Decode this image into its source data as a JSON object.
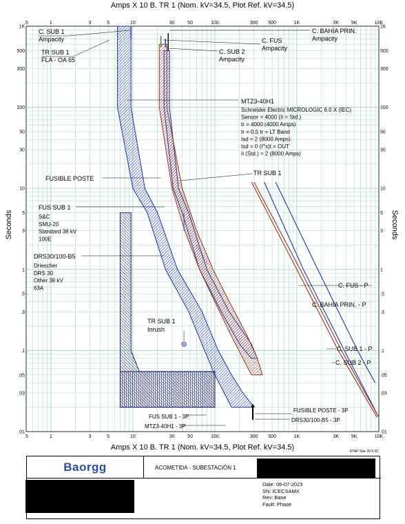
{
  "header": {
    "top_axis_title": "Amps  X  10   B. TR 1 (Nom. kV=34.5, Plot Ref. kV=34.5)",
    "bottom_axis_title": "Amps  X  10   B. TR 1 (Nom. kV=34.5, Plot Ref. kV=34.5)",
    "left_axis_title": "Seconds",
    "right_axis_title": "Seconds"
  },
  "chart_data": {
    "type": "line",
    "x_scale": "log",
    "y_scale": "log",
    "xlim": [
      0.5,
      10000
    ],
    "ylim": [
      0.01,
      1000
    ],
    "x_ticks": [
      ".5",
      "1",
      "3",
      "5",
      "10",
      "30",
      "50",
      "100",
      "300",
      "500",
      "1K",
      "3K",
      "5K",
      "10K"
    ],
    "x_tick_values": [
      0.5,
      1,
      3,
      5,
      10,
      30,
      50,
      100,
      300,
      500,
      1000,
      3000,
      5000,
      10000
    ],
    "y_ticks": [
      "1K",
      "500",
      "300",
      "100",
      "50",
      "30",
      "10",
      "5",
      "3",
      "1",
      ".5",
      ".3",
      ".1",
      ".05",
      ".03",
      ".01"
    ],
    "y_tick_values": [
      1000,
      500,
      300,
      100,
      50,
      30,
      10,
      5,
      3,
      1,
      0.5,
      0.3,
      0.1,
      0.05,
      0.03,
      0.01
    ],
    "grid": true,
    "colors": {
      "grid": "#9fd6bd",
      "blue": "#1a2fb0",
      "navy": "#1b1f6e",
      "red": "#9b2f1f",
      "green": "#1a8f2a"
    },
    "series": [
      {
        "name": "MTZ3-40H1",
        "color": "#1a2fb0",
        "upper": [
          [
            9.5,
            1000
          ],
          [
            9.5,
            100
          ],
          [
            14,
            10
          ],
          [
            20,
            5
          ],
          [
            35,
            1
          ],
          [
            70,
            0.3
          ],
          [
            110,
            0.1
          ],
          [
            160,
            0.05
          ],
          [
            220,
            0.03
          ],
          [
            300,
            0.02
          ]
        ],
        "lower": [
          [
            6.5,
            1000
          ],
          [
            6.5,
            100
          ],
          [
            10,
            10
          ],
          [
            15,
            5
          ],
          [
            25,
            1
          ],
          [
            48,
            0.3
          ],
          [
            75,
            0.1
          ],
          [
            100,
            0.05
          ],
          [
            130,
            0.03
          ],
          [
            160,
            0.02
          ]
        ]
      },
      {
        "name": "C. FUS",
        "color": "#9b2f1f",
        "upper": [
          [
            26,
            600
          ],
          [
            26,
            100
          ],
          [
            40,
            10
          ],
          [
            60,
            3
          ],
          [
            95,
            1
          ],
          [
            150,
            0.4
          ],
          [
            250,
            0.15
          ],
          [
            330,
            0.08
          ],
          [
            380,
            0.05
          ]
        ],
        "lower": [
          [
            21,
            600
          ],
          [
            21,
            100
          ],
          [
            30,
            10
          ],
          [
            43,
            3
          ],
          [
            65,
            1
          ],
          [
            100,
            0.4
          ],
          [
            160,
            0.15
          ],
          [
            220,
            0.08
          ],
          [
            280,
            0.05
          ]
        ]
      },
      {
        "name": "TR SUB 1",
        "color": "#1a2fb0",
        "upper": [
          [
            28,
            500
          ],
          [
            28,
            100
          ],
          [
            36,
            10
          ],
          [
            48,
            5
          ],
          [
            80,
            1
          ],
          [
            150,
            0.3
          ],
          [
            280,
            0.12
          ],
          [
            330,
            0.08
          ]
        ],
        "lower": [
          [
            24,
            500
          ],
          [
            24,
            100
          ],
          [
            31,
            10
          ],
          [
            40,
            5
          ],
          [
            65,
            1
          ],
          [
            120,
            0.3
          ],
          [
            200,
            0.12
          ],
          [
            280,
            0.08
          ]
        ]
      },
      {
        "name": "DRS30/100-B5",
        "color": "#1b1f6e",
        "upper": [
          [
            9.5,
            5
          ],
          [
            9.5,
            0.1
          ],
          [
            12,
            0.055
          ],
          [
            100,
            0.055
          ],
          [
            100,
            0.02
          ]
        ],
        "lower": [
          [
            7,
            5
          ],
          [
            7,
            0.02
          ],
          [
            100,
            0.02
          ]
        ]
      },
      {
        "name": "C. SUB 1 - P",
        "color": "#1a2fb0",
        "points": [
          [
            550,
            12
          ],
          [
            1800,
            1
          ],
          [
            5500,
            0.1
          ],
          [
            9000,
            0.04
          ]
        ]
      },
      {
        "name": "C. SUB 2 - P",
        "color": "#1a2fb0",
        "points": [
          [
            400,
            12
          ],
          [
            1200,
            1
          ],
          [
            3800,
            0.1
          ],
          [
            10000,
            0.015
          ]
        ]
      },
      {
        "name": "C. FUS - P",
        "color": "#9b2f1f",
        "points": [
          [
            300,
            12
          ],
          [
            1100,
            1
          ],
          [
            3500,
            0.1
          ],
          [
            10000,
            0.015
          ]
        ]
      },
      {
        "name": "C. BAHÍA PRIN. - P",
        "color": "#9b2f1f",
        "points": [
          [
            280,
            12
          ],
          [
            1000,
            1
          ],
          [
            3200,
            0.1
          ],
          [
            9500,
            0.015
          ]
        ]
      }
    ],
    "ampacity_markers": [
      {
        "name": "C. SUB 1 Ampacity",
        "x": 9.5,
        "y_top": 1000,
        "y_bottom": 700
      },
      {
        "name": "C. SUB 2 Ampacity",
        "x": 25,
        "y_top": 700,
        "y_bottom": 550
      },
      {
        "name": "C. FUS Ampacity",
        "x": 22,
        "y_top": 760,
        "y_bottom": 550
      },
      {
        "name": "C. BAHÍA PRIN. Ampacity",
        "x": 27,
        "y_top": 820,
        "y_bottom": 500
      }
    ],
    "inrush_point": {
      "x": 42,
      "y": 0.12
    },
    "annotations": {
      "c_sub1_ampacity": [
        "C. SUB 1",
        "Ampacity"
      ],
      "tr_sub1_fla": [
        "TR SUB 1",
        "FLA - OA 65"
      ],
      "c_bahia_prin": [
        "C. BAHÍA PRIN.",
        "Ampacity"
      ],
      "c_fus": [
        "C. FUS",
        "Ampacity"
      ],
      "c_sub2": [
        "C. SUB 2",
        "Ampacity"
      ],
      "mtz3": [
        "MTZ3-40H1",
        "Schneider Electric  MICROLOGIC 6.0 X (IEC)",
        "Sensor = 4000 (Ii =  Std.)",
        "tr = 4000 (4000 Amps)",
        "tr = 0.5  tr = LT Band",
        "Isd = 2 (8000 Amps)",
        "tsd = 0  (I^x)t = OUT",
        "Ii (Std.)  = 2 (8000 Amps)"
      ],
      "fusible_poste": "FUSIBLE POSTE",
      "tr_sub1": "TR SUB 1",
      "fus_sub1": [
        "FUS SUB 1",
        "S&C",
        "SMU-20",
        "Standard  38 kV",
        "100E"
      ],
      "drs30": [
        "DRS30/100-B5",
        "Driescher",
        "DRS 30",
        "Other  38 kV",
        "63A"
      ],
      "tr_sub1_inrush": [
        "TR SUB 1",
        "Inrush"
      ],
      "c_fus_p": "C. FUS - P",
      "c_bahia_p": "C. BAHÍA PRIN. - P",
      "c_sub1_p": "C. SUB 1 - P",
      "c_sub2_p": "C. SUB 2 - P",
      "fus_sub1_3p": "FUS SUB 1 - 3P",
      "mtz3_3p": "MTZ3-40H1 - 3P",
      "fusible_poste_3p": "FUSIBLE POSTE - 3P",
      "drs_3p": "DRS30/100-B5 - 3P"
    }
  },
  "footer": {
    "etap": "ETAP Star 20.5.0C",
    "logo": "Baorgg",
    "title": "ACOMETIDA - SUBESTACIÓN 1",
    "date": "Date:  06-07-2023",
    "sn": "SN:    ICECSAMX",
    "rev": "Rev:   Base",
    "fault": "Fault:  Phase"
  }
}
